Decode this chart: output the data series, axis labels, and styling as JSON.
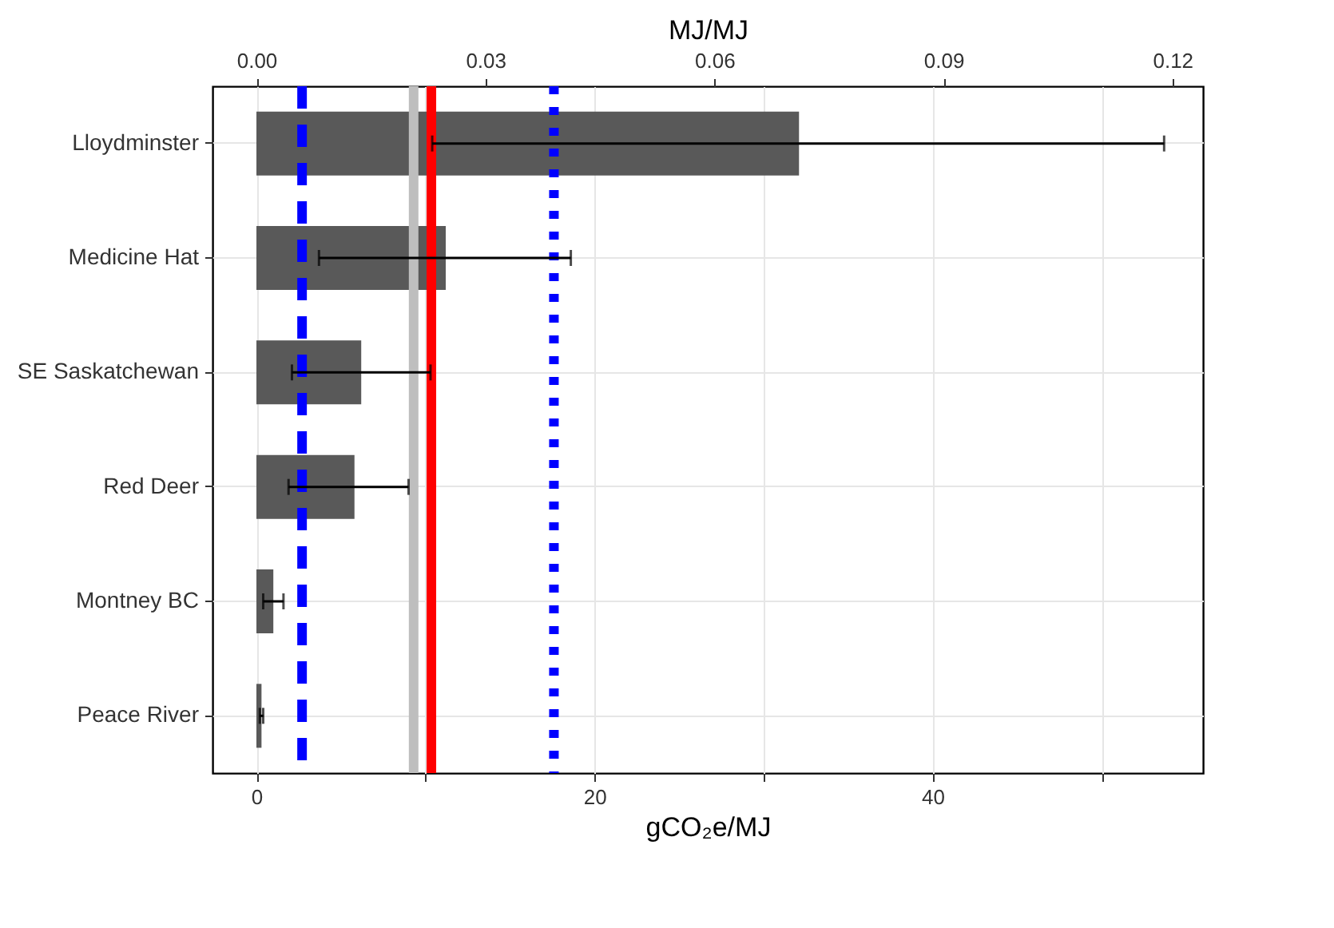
{
  "chart_data": {
    "type": "bar",
    "orientation": "horizontal",
    "categories": [
      "Lloydminster",
      "Medicine Hat",
      "SE Saskatchewan",
      "Red Deer",
      "Montney BC",
      "Peace River"
    ],
    "values": [
      32.1,
      11.2,
      6.2,
      5.8,
      1.0,
      0.3
    ],
    "errors": [
      [
        10.4,
        53.7
      ],
      [
        3.7,
        18.6
      ],
      [
        2.1,
        10.3
      ],
      [
        1.9,
        9.0
      ],
      [
        0.4,
        1.6
      ],
      [
        0.2,
        0.4
      ]
    ],
    "color": "#595959",
    "xlabel": "gCO₂e/MJ",
    "x2label": "MJ/MJ",
    "xlim": [
      -2.6,
      56
    ],
    "xticks": [
      0,
      {
        "value": 10,
        "label": null
      },
      20,
      {
        "value": 30,
        "label": null
      },
      40,
      {
        "value": 50,
        "label": null
      }
    ],
    "x2lim": [
      -0.00576,
      0.124
    ],
    "x2ticks": [
      {
        "value": 0,
        "label": "0.00"
      },
      0.03,
      0.06,
      0.09,
      {
        "value": 0.12,
        "label": "0.12"
      }
    ],
    "ref_lines": [
      {
        "axis": "x",
        "value": 2.7,
        "color": "#0000ff",
        "line_style": "dashed"
      },
      {
        "axis": "x",
        "value": 9.3,
        "color": "#bebebe",
        "line_style": "solid"
      },
      {
        "axis": "x",
        "value": 10.35,
        "color": "#ff0000",
        "line_style": "solid"
      },
      {
        "axis": "x",
        "value": 17.6,
        "color": "#0000ff",
        "line_style": "dotted"
      }
    ],
    "grid": true
  }
}
